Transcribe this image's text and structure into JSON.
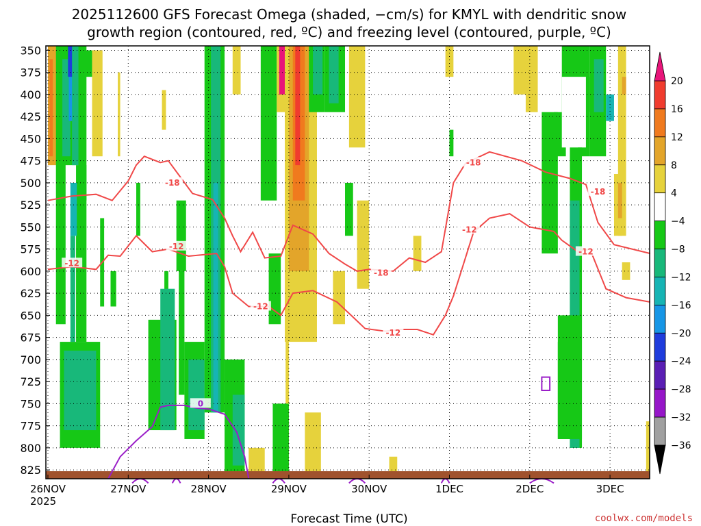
{
  "title": {
    "line1": "2025112600 GFS Forecast Omega (shaded, −cm/s) for KMYL with dendritic snow",
    "line2": "growth region (contoured, red, ºC) and freezing level (contoured, purple, ºC)"
  },
  "axis": {
    "x_title": "Forecast Time (UTC)",
    "x_year": "2025",
    "y_ticks": [
      "350",
      "375",
      "400",
      "425",
      "450",
      "475",
      "500",
      "525",
      "550",
      "575",
      "600",
      "625",
      "650",
      "675",
      "700",
      "725",
      "750",
      "775",
      "800",
      "825"
    ],
    "x_ticks": [
      "26NOV",
      "27NOV",
      "28NOV",
      "29NOV",
      "30NOV",
      "1DEC",
      "2DEC",
      "3DEC"
    ]
  },
  "colorbar": {
    "labels": [
      "20",
      "16",
      "12",
      "8",
      "4",
      "−4",
      "−8",
      "−12",
      "−16",
      "−20",
      "−24",
      "−28",
      "−32",
      "−36"
    ],
    "colors": {
      "c20": "#e8157a",
      "c16": "#f03c2e",
      "c12": "#f07a1e",
      "c8": "#e3a52a",
      "c4": "#e6d23c",
      "c0": "#ffffff",
      "cm4": "#16c816",
      "cm8": "#18b87a",
      "cm12": "#16b4b4",
      "cm16": "#1696e6",
      "cm20": "#1e3cdc",
      "cm24": "#5a1eb4",
      "cm28": "#9616c8",
      "cm32": "#a0a0a0",
      "cm36": "#000000"
    }
  },
  "credit": "coolwx.com/models",
  "chart_data": {
    "type": "heatmap",
    "title": "2025112600 GFS Forecast Omega (shaded, −cm/s) for KMYL with dendritic snow growth region (contoured, red, ºC) and freezing level (contoured, purple, ºC)",
    "xlabel": "Forecast Time (UTC)",
    "ylabel": "",
    "x_categories": [
      "26NOV",
      "27NOV",
      "28NOV",
      "29NOV",
      "30NOV",
      "1DEC",
      "2DEC",
      "3DEC"
    ],
    "ylim": [
      835,
      345
    ],
    "y_ticks": [
      350,
      375,
      400,
      425,
      450,
      475,
      500,
      525,
      550,
      575,
      600,
      625,
      650,
      675,
      700,
      725,
      750,
      775,
      800,
      825
    ],
    "colorbar_levels": [
      20,
      16,
      12,
      8,
      4,
      -4,
      -8,
      -12,
      -16,
      -20,
      -24,
      -28,
      -32,
      -36
    ],
    "contour_labels": [
      {
        "series": "dendritic-snow-growth",
        "value": "-18",
        "color": "#f04848"
      },
      {
        "series": "dendritic-snow-growth",
        "value": "-12",
        "color": "#f04848"
      },
      {
        "series": "freezing-level",
        "value": "0",
        "color": "#9a1ec8"
      }
    ],
    "series": [
      {
        "name": "-18",
        "color": "#f04848",
        "points": [
          [
            0,
            520
          ],
          [
            0.3,
            515
          ],
          [
            0.6,
            513
          ],
          [
            0.8,
            520
          ],
          [
            1.0,
            498
          ],
          [
            1.1,
            480
          ],
          [
            1.2,
            470
          ],
          [
            1.4,
            477
          ],
          [
            1.5,
            475
          ],
          [
            1.8,
            512
          ],
          [
            2.05,
            519
          ],
          [
            2.2,
            540
          ],
          [
            2.3,
            560
          ],
          [
            2.4,
            578
          ],
          [
            2.55,
            556
          ],
          [
            2.7,
            585
          ],
          [
            2.9,
            583
          ],
          [
            3.05,
            548
          ],
          [
            3.3,
            558
          ],
          [
            3.5,
            580
          ],
          [
            3.7,
            592
          ],
          [
            3.85,
            600
          ],
          [
            4.0,
            598
          ],
          [
            4.3,
            600
          ],
          [
            4.5,
            585
          ],
          [
            4.7,
            590
          ],
          [
            4.9,
            578
          ],
          [
            5.05,
            500
          ],
          [
            5.2,
            478
          ],
          [
            5.5,
            465
          ],
          [
            5.9,
            475
          ],
          [
            6.2,
            488
          ],
          [
            6.5,
            495
          ],
          [
            6.7,
            502
          ],
          [
            6.85,
            545
          ],
          [
            7.05,
            570
          ],
          [
            7.5,
            580
          ]
        ]
      },
      {
        "name": "-12",
        "color": "#f04848",
        "points": [
          [
            0,
            598
          ],
          [
            0.3,
            595
          ],
          [
            0.6,
            598
          ],
          [
            0.75,
            582
          ],
          [
            0.9,
            583
          ],
          [
            1.1,
            560
          ],
          [
            1.3,
            578
          ],
          [
            1.5,
            575
          ],
          [
            1.75,
            583
          ],
          [
            2.1,
            580
          ],
          [
            2.2,
            595
          ],
          [
            2.3,
            625
          ],
          [
            2.5,
            640
          ],
          [
            2.75,
            640
          ],
          [
            2.9,
            650
          ],
          [
            3.05,
            625
          ],
          [
            3.3,
            622
          ],
          [
            3.6,
            635
          ],
          [
            3.8,
            652
          ],
          [
            3.95,
            665
          ],
          [
            4.2,
            668
          ],
          [
            4.4,
            666
          ],
          [
            4.6,
            666
          ],
          [
            4.8,
            672
          ],
          [
            4.95,
            650
          ],
          [
            5.05,
            628
          ],
          [
            5.3,
            556
          ],
          [
            5.5,
            540
          ],
          [
            5.75,
            535
          ],
          [
            6.0,
            550
          ],
          [
            6.3,
            555
          ],
          [
            6.4,
            565
          ],
          [
            6.6,
            578
          ],
          [
            6.75,
            575
          ],
          [
            6.95,
            620
          ],
          [
            7.2,
            630
          ],
          [
            7.5,
            635
          ]
        ]
      },
      {
        "name": "0",
        "color": "#9a1ec8",
        "points": [
          [
            0.75,
            835
          ],
          [
            0.9,
            810
          ],
          [
            1.1,
            792
          ],
          [
            1.3,
            776
          ],
          [
            1.4,
            754
          ],
          [
            1.5,
            752
          ],
          [
            1.7,
            752
          ],
          [
            1.85,
            755
          ],
          [
            2.0,
            756
          ],
          [
            2.2,
            762
          ],
          [
            2.35,
            782
          ],
          [
            2.45,
            810
          ],
          [
            2.5,
            835
          ]
        ]
      }
    ]
  }
}
